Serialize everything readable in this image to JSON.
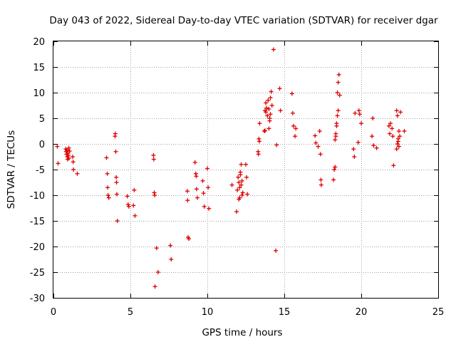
{
  "chart_data": {
    "type": "scatter",
    "title": "Day 043 of 2022, Sidereal Day-to-day VTEC variation (SDTVAR) for receiver dgar",
    "xlabel": "GPS time / hours",
    "ylabel": "SDTVAR / TECUs",
    "xlim": [
      0,
      25
    ],
    "ylim": [
      -30,
      20
    ],
    "xticks": [
      0,
      5,
      10,
      15,
      20,
      25
    ],
    "yticks": [
      -30,
      -25,
      -20,
      -15,
      -10,
      -5,
      0,
      5,
      10,
      15,
      20
    ],
    "grid": true,
    "marker": "+",
    "series_color": "#e00000",
    "series": [
      {
        "name": "SDTVAR",
        "x": [
          0.25,
          0.3,
          0.8,
          0.82,
          0.85,
          0.88,
          0.9,
          0.92,
          0.95,
          0.97,
          1.0,
          1.0,
          1.05,
          1.25,
          1.28,
          1.3,
          1.55,
          3.45,
          3.5,
          3.52,
          3.55,
          3.6,
          4.0,
          4.02,
          4.05,
          4.08,
          4.1,
          4.12,
          4.15,
          4.8,
          4.85,
          4.9,
          5.2,
          5.25,
          5.3,
          6.5,
          6.52,
          6.55,
          6.58,
          6.6,
          6.7,
          6.8,
          7.6,
          7.65,
          8.7,
          8.72,
          8.75,
          8.8,
          9.2,
          9.25,
          9.28,
          9.3,
          9.35,
          9.7,
          9.75,
          9.8,
          10.0,
          10.05,
          10.1,
          11.6,
          11.9,
          11.95,
          12.0,
          12.05,
          12.05,
          12.1,
          12.15,
          12.2,
          12.25,
          12.3,
          12.1,
          12.15,
          12.2,
          12.25,
          12.5,
          12.55,
          12.6,
          13.3,
          13.32,
          13.35,
          13.38,
          13.4,
          13.7,
          13.75,
          13.8,
          13.85,
          13.9,
          13.95,
          14.0,
          14.05,
          14.1,
          14.15,
          14.2,
          14.0,
          14.05,
          14.1,
          13.75,
          13.8,
          14.3,
          14.7,
          14.75,
          15.5,
          15.55,
          15.6,
          15.7,
          15.75,
          17.0,
          17.05,
          17.2,
          17.3,
          17.35,
          17.38,
          17.4,
          18.2,
          18.25,
          18.3,
          18.35,
          18.4,
          18.45,
          18.5,
          18.3,
          18.35,
          18.4,
          18.45,
          18.5,
          18.55,
          18.6,
          19.5,
          19.55,
          19.6,
          19.8,
          19.85,
          19.9,
          20.0,
          20.7,
          20.75,
          20.8,
          21.0,
          21.8,
          21.85,
          21.9,
          22.0,
          22.05,
          22.1,
          22.3,
          22.35,
          22.4,
          22.45,
          22.5,
          22.55,
          22.3,
          22.35,
          22.4,
          22.45,
          22.8,
          14.45,
          14.5
        ],
        "y": [
          -0.5,
          -3.8,
          -1.0,
          -1.5,
          -2.0,
          -1.2,
          -2.5,
          -3.0,
          -1.8,
          -2.2,
          -0.8,
          -2.8,
          -1.4,
          -2.5,
          -3.5,
          -5.0,
          -5.8,
          -2.7,
          -5.8,
          -8.5,
          -10.0,
          -10.5,
          1.5,
          2.0,
          -1.5,
          -6.5,
          -7.5,
          -9.8,
          -15.0,
          -10.2,
          -11.8,
          -12.2,
          -12.0,
          -9.0,
          -14.0,
          -2.2,
          -3.0,
          -9.5,
          -10.0,
          -27.8,
          -20.3,
          -25.0,
          -19.8,
          -22.5,
          -9.2,
          -11.0,
          -18.2,
          -18.5,
          -3.6,
          -5.8,
          -6.3,
          -8.8,
          -10.5,
          -7.2,
          -9.6,
          -12.2,
          -4.8,
          -8.5,
          -12.6,
          -8.0,
          -13.2,
          -9.0,
          -6.5,
          -7.5,
          -10.8,
          -8.5,
          -6.0,
          -4.0,
          -7.2,
          -9.5,
          -10.5,
          -5.5,
          -8.0,
          -10.0,
          -4.0,
          -6.5,
          -9.8,
          -1.5,
          -2.0,
          1.0,
          0.5,
          4.0,
          2.5,
          6.5,
          8.0,
          7.0,
          5.5,
          8.5,
          6.8,
          5.0,
          9.0,
          10.2,
          7.5,
          3.0,
          4.5,
          5.8,
          2.6,
          6.2,
          18.4,
          10.8,
          6.5,
          9.8,
          6.0,
          3.5,
          1.5,
          3.0,
          1.6,
          0.2,
          -0.5,
          2.5,
          -2.0,
          -7.0,
          -8.0,
          -7.0,
          -5.0,
          0.8,
          2.0,
          3.5,
          5.5,
          6.5,
          -4.5,
          1.5,
          4.0,
          10.0,
          12.0,
          13.5,
          9.5,
          -1.0,
          -2.5,
          6.0,
          0.3,
          6.5,
          5.8,
          4.0,
          1.5,
          5.0,
          -0.3,
          -0.8,
          3.5,
          2.0,
          4.0,
          3.0,
          1.5,
          -4.2,
          6.5,
          5.5,
          0.5,
          -0.5,
          1.5,
          6.2,
          -1.0,
          0.0,
          1.0,
          2.5,
          2.5,
          -20.8,
          -0.2
        ]
      }
    ]
  }
}
